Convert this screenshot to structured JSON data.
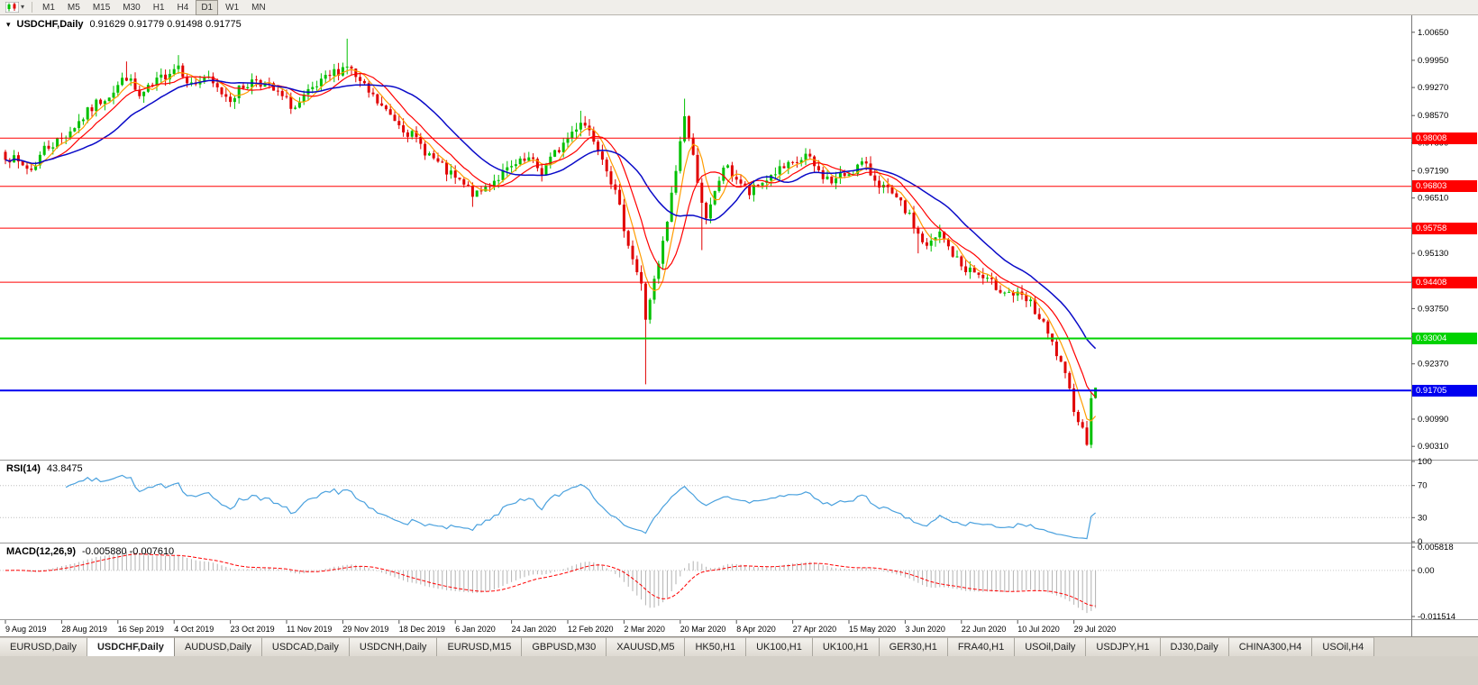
{
  "toolbar": {
    "timeframes": [
      "M1",
      "M5",
      "M15",
      "M30",
      "H1",
      "H4",
      "D1",
      "W1",
      "MN"
    ],
    "active_timeframe": "D1",
    "chart_icon": "candlestick-chart-icon"
  },
  "chart": {
    "title": "USDCHF,Daily",
    "ohlc": "0.91629 0.91779 0.91498 0.91775",
    "price_axis_labels": [
      "1.00650",
      "0.99950",
      "0.99270",
      "0.98570",
      "0.97890",
      "0.97190",
      "0.96510",
      "0.95810",
      "0.95130",
      "0.94430",
      "0.93750",
      "0.93050",
      "0.92370",
      "0.91670",
      "0.90990",
      "0.90310"
    ],
    "levels": [
      {
        "price": 0.98008,
        "label": "0.98008",
        "color": "#ff0000",
        "width": 1
      },
      {
        "price": 0.96803,
        "label": "0.96803",
        "color": "#ff0000",
        "width": 1
      },
      {
        "price": 0.95758,
        "label": "0.95758",
        "color": "#ff0000",
        "width": 1
      },
      {
        "price": 0.94408,
        "label": "0.94408",
        "color": "#ff0000",
        "width": 1
      },
      {
        "price": 0.93004,
        "label": "0.93004",
        "color": "#00d200",
        "width": 2
      },
      {
        "price": 0.91705,
        "label": "0.91705",
        "color": "#0000f0",
        "width": 2
      }
    ],
    "date_labels": [
      "9 Aug 2019",
      "28 Aug 2019",
      "16 Sep 2019",
      "4 Oct 2019",
      "23 Oct 2019",
      "11 Nov 2019",
      "29 Nov 2019",
      "18 Dec 2019",
      "6 Jan 2020",
      "24 Jan 2020",
      "12 Feb 2020",
      "2 Mar 2020",
      "20 Mar 2020",
      "8 Apr 2020",
      "27 Apr 2020",
      "15 May 2020",
      "3 Jun 2020",
      "22 Jun 2020",
      "10 Jul 2020",
      "29 Jul 2020"
    ]
  },
  "rsi": {
    "title": "RSI(14)",
    "value": "43.8475",
    "axis": [
      "100",
      "70",
      "30",
      "0"
    ],
    "level_lines": [
      70,
      30
    ]
  },
  "macd": {
    "title": "MACD(12,26,9)",
    "values": "-0.005880 -0.007610",
    "axis": [
      "0.005818",
      "0.00",
      "-0.011514"
    ]
  },
  "tabs": {
    "items": [
      "EURUSD,Daily",
      "USDCHF,Daily",
      "AUDUSD,Daily",
      "USDCAD,Daily",
      "USDCNH,Daily",
      "EURUSD,M15",
      "GBPUSD,M30",
      "XAUUSD,M5",
      "HK50,H1",
      "UK100,H1",
      "UK100,H1",
      "GER30,H1",
      "FRA40,H1",
      "USOil,Daily",
      "USDJPY,H1",
      "DJ30,Daily",
      "CHINA300,H4",
      "USOil,H4"
    ],
    "active": "USDCHF,Daily"
  },
  "colors": {
    "background": "#ffffff",
    "candle_up": "#00c000",
    "candle_down": "#e00000",
    "ma_fast": "#ff9c00",
    "ma_mid": "#ff0000",
    "ma_slow": "#0a0ac8",
    "rsi_line": "#4aa1de",
    "rsi_level": "#bdbdbd",
    "macd_hist": "#b2b2b2",
    "macd_signal": "#ff0000",
    "separator": "#9a9a9a",
    "axis_line": "#7a7a7a",
    "axis_text": "#000000"
  },
  "chart_data": {
    "type": "candlestick",
    "symbol": "USDCHF",
    "timeframe": "Daily",
    "current_bar": {
      "open": 0.91629,
      "high": 0.91779,
      "low": 0.91498,
      "close": 0.91775
    },
    "bars": 253,
    "seed": 7,
    "noise": 0.0014,
    "wick": 0.0018,
    "last_close": 0.91775,
    "y_axis_range": [
      0.9,
      1.0105
    ],
    "close_anchors": [
      [
        0,
        0.976
      ],
      [
        3,
        0.9737
      ],
      [
        6,
        0.9722
      ],
      [
        9,
        0.9775
      ],
      [
        13,
        0.98
      ],
      [
        17,
        0.9842
      ],
      [
        21,
        0.9886
      ],
      [
        25,
        0.992
      ],
      [
        28,
        0.9956
      ],
      [
        31,
        0.9902
      ],
      [
        34,
        0.993
      ],
      [
        38,
        0.997
      ],
      [
        40,
        0.9984
      ],
      [
        43,
        0.9932
      ],
      [
        46,
        0.9952
      ],
      [
        49,
        0.9922
      ],
      [
        52,
        0.9901
      ],
      [
        55,
        0.993
      ],
      [
        58,
        0.995
      ],
      [
        61,
        0.9926
      ],
      [
        64,
        0.9901
      ],
      [
        67,
        0.9876
      ],
      [
        70,
        0.991
      ],
      [
        73,
        0.9936
      ],
      [
        76,
        0.9964
      ],
      [
        79,
        0.9984
      ],
      [
        82,
        0.9936
      ],
      [
        85,
        0.9901
      ],
      [
        88,
        0.9866
      ],
      [
        91,
        0.984
      ],
      [
        94,
        0.9806
      ],
      [
        97,
        0.9771
      ],
      [
        100,
        0.9736
      ],
      [
        103,
        0.9706
      ],
      [
        106,
        0.9681
      ],
      [
        109,
        0.9656
      ],
      [
        112,
        0.969
      ],
      [
        115,
        0.9711
      ],
      [
        118,
        0.9731
      ],
      [
        121,
        0.9746
      ],
      [
        124,
        0.9716
      ],
      [
        127,
        0.9761
      ],
      [
        130,
        0.9801
      ],
      [
        133,
        0.9846
      ],
      [
        135,
        0.9821
      ],
      [
        137,
        0.9781
      ],
      [
        139,
        0.9731
      ],
      [
        141,
        0.9661
      ],
      [
        143,
        0.9581
      ],
      [
        145,
        0.9501
      ],
      [
        147,
        0.9431
      ],
      [
        148,
        0.9351
      ],
      [
        149,
        0.9401
      ],
      [
        151,
        0.9481
      ],
      [
        153,
        0.9591
      ],
      [
        155,
        0.9721
      ],
      [
        157,
        0.9861
      ],
      [
        158,
        0.9801
      ],
      [
        160,
        0.9701
      ],
      [
        162,
        0.9591
      ],
      [
        164,
        0.9661
      ],
      [
        166,
        0.9731
      ],
      [
        169,
        0.9701
      ],
      [
        172,
        0.9661
      ],
      [
        175,
        0.9691
      ],
      [
        178,
        0.9716
      ],
      [
        182,
        0.9731
      ],
      [
        185,
        0.9756
      ],
      [
        188,
        0.9716
      ],
      [
        191,
        0.9691
      ],
      [
        195,
        0.9716
      ],
      [
        198,
        0.9736
      ],
      [
        201,
        0.9701
      ],
      [
        204,
        0.9666
      ],
      [
        208,
        0.9621
      ],
      [
        211,
        0.9561
      ],
      [
        213,
        0.9526
      ],
      [
        216,
        0.9561
      ],
      [
        219,
        0.9511
      ],
      [
        221,
        0.9481
      ],
      [
        224,
        0.9466
      ],
      [
        227,
        0.9441
      ],
      [
        230,
        0.9426
      ],
      [
        234,
        0.9406
      ],
      [
        237,
        0.9386
      ],
      [
        240,
        0.9331
      ],
      [
        243,
        0.9261
      ],
      [
        245,
        0.9201
      ],
      [
        247,
        0.9131
      ],
      [
        249,
        0.9071
      ],
      [
        250,
        0.9046
      ],
      [
        251,
        0.9163
      ],
      [
        252,
        0.91775
      ]
    ],
    "special_wicks": [
      {
        "i": 28,
        "h": 0.9992
      },
      {
        "i": 40,
        "h": 1.0008
      },
      {
        "i": 79,
        "h": 1.0049
      },
      {
        "i": 108,
        "l": 0.9629
      },
      {
        "i": 133,
        "h": 0.9869
      },
      {
        "i": 148,
        "l": 0.9186
      },
      {
        "i": 157,
        "h": 0.9899
      },
      {
        "i": 161,
        "l": 0.9521
      },
      {
        "i": 211,
        "l": 0.9513
      },
      {
        "i": 250,
        "l": 0.9032
      },
      {
        "i": 252,
        "h": 0.91779,
        "l": 0.91498
      }
    ],
    "moving_averages": [
      {
        "name": "MA fast",
        "period": 5,
        "color": "#ff9c00"
      },
      {
        "name": "MA mid",
        "period": 10,
        "color": "#ff0000"
      },
      {
        "name": "MA slow",
        "period": 22,
        "color": "#0a0ac8"
      }
    ],
    "indicators": {
      "rsi": {
        "period": 14,
        "current": 43.8475,
        "scale": [
          0,
          100
        ],
        "levels": [
          30,
          70
        ]
      },
      "macd": {
        "fast": 12,
        "slow": 26,
        "signal": 9,
        "current_macd": -0.00588,
        "current_signal": -0.00761,
        "scale": [
          -0.011514,
          0.005818
        ]
      }
    }
  }
}
